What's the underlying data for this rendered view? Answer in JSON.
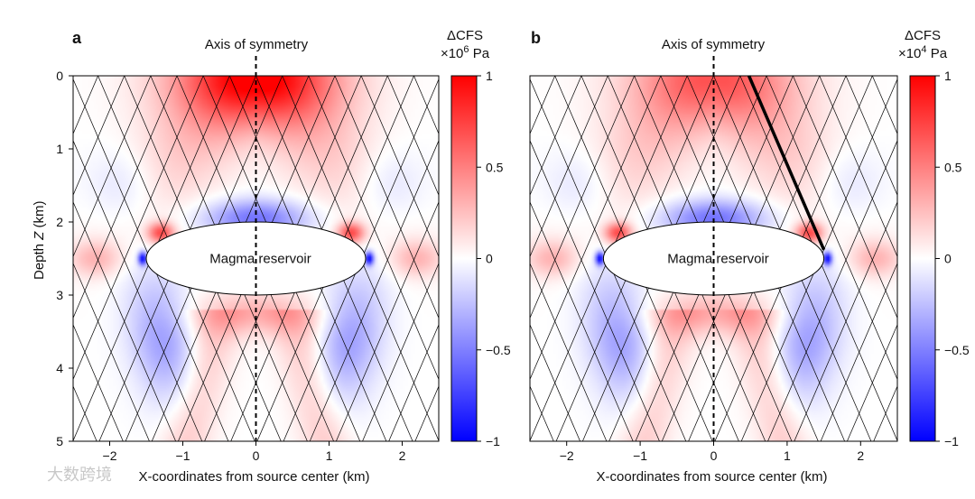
{
  "chart_data": [
    {
      "type": "heatmap",
      "panel_label": "a",
      "title": "Axis of symmetry",
      "xlabel": "X-coordinates from source center (km)",
      "ylabel_prefix": "Depth ",
      "ylabel_var": "Z",
      "ylabel_suffix": " (km)",
      "xlim": [
        -2.5,
        2.5
      ],
      "ylim": [
        0,
        5
      ],
      "x_ticks": [
        -2,
        -1,
        0,
        1,
        2
      ],
      "y_ticks": [
        0,
        1,
        2,
        3,
        4,
        5
      ],
      "colorbar": {
        "label_line1": "ΔCFS",
        "label_line2_prefix": "×10",
        "label_exponent": "6",
        "label_line2_suffix": " Pa",
        "range": [
          -1,
          1
        ],
        "ticks": [
          "1",
          "0.5",
          "0",
          "−0.5",
          "−1"
        ]
      },
      "reservoir": {
        "label": "Magma reservoir",
        "center": [
          0,
          2.5
        ],
        "semi_axes": [
          1.5,
          0.5
        ]
      },
      "annotation": "Axis of symmetry",
      "highlight_fault": null,
      "colors": {
        "positive": "#ff0000",
        "negative": "#0000ff",
        "zero": "#ffffff"
      }
    },
    {
      "type": "heatmap",
      "panel_label": "b",
      "title": "Axis of symmetry",
      "xlabel": "X-coordinates from source center (km)",
      "ylabel_prefix": "",
      "ylabel_var": "",
      "ylabel_suffix": "",
      "xlim": [
        -2.5,
        2.5
      ],
      "ylim": [
        0,
        5
      ],
      "x_ticks": [
        -2,
        -1,
        0,
        1,
        2
      ],
      "y_ticks": [],
      "colorbar": {
        "label_line1": "ΔCFS",
        "label_line2_prefix": "×10",
        "label_exponent": "4",
        "label_line2_suffix": " Pa",
        "range": [
          -1,
          1
        ],
        "ticks": [
          "1",
          "0.5",
          "0",
          "−0.5",
          "−1"
        ]
      },
      "reservoir": {
        "label": "Magma reservoir",
        "center": [
          0,
          2.5
        ],
        "semi_axes": [
          1.5,
          0.5
        ]
      },
      "annotation": "Axis of symmetry",
      "highlight_fault": {
        "from": [
          0.48,
          0
        ],
        "to": [
          1.5,
          2.38
        ]
      },
      "colors": {
        "positive": "#ff0000",
        "negative": "#0000ff",
        "zero": "#ffffff"
      }
    }
  ],
  "watermark": "大数跨境"
}
